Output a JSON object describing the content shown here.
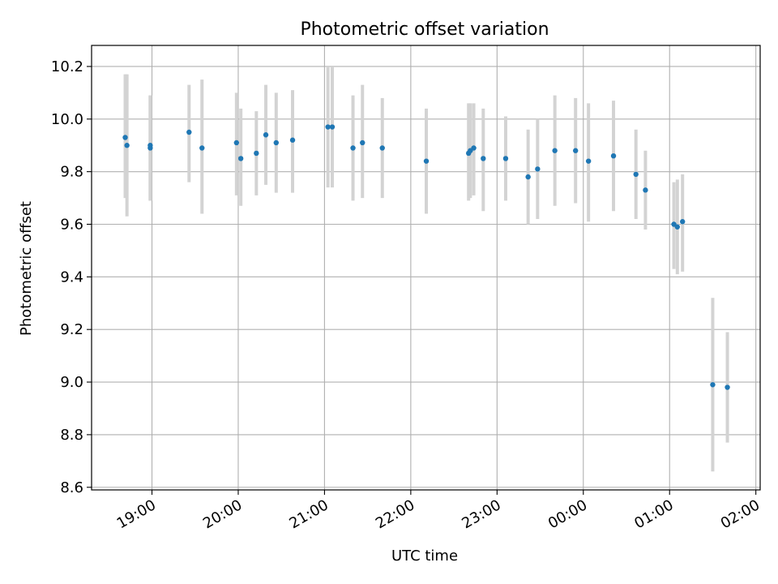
{
  "chart_data": {
    "type": "scatter",
    "title": "Photometric offset variation",
    "xlabel": "UTC time",
    "ylabel": "Photometric offset",
    "xlim_hours": [
      18.3,
      26.05
    ],
    "ylim": [
      8.59,
      10.28
    ],
    "grid": true,
    "colors": {
      "point": "#1f77b4",
      "errorbar": "#d3d3d3",
      "grid": "#b0b0b0",
      "axis": "#000000"
    },
    "x_ticks": [
      {
        "hour": 19,
        "label": "19:00"
      },
      {
        "hour": 20,
        "label": "20:00"
      },
      {
        "hour": 21,
        "label": "21:00"
      },
      {
        "hour": 22,
        "label": "22:00"
      },
      {
        "hour": 23,
        "label": "23:00"
      },
      {
        "hour": 24,
        "label": "00:00"
      },
      {
        "hour": 25,
        "label": "01:00"
      },
      {
        "hour": 26,
        "label": "02:00"
      }
    ],
    "y_ticks": [
      {
        "value": 8.6,
        "label": "8.6"
      },
      {
        "value": 8.8,
        "label": "8.8"
      },
      {
        "value": 9.0,
        "label": "9.0"
      },
      {
        "value": 9.2,
        "label": "9.2"
      },
      {
        "value": 9.4,
        "label": "9.4"
      },
      {
        "value": 9.6,
        "label": "9.6"
      },
      {
        "value": 9.8,
        "label": "9.8"
      },
      {
        "value": 10.0,
        "label": "10.0"
      },
      {
        "value": 10.2,
        "label": "10.2"
      }
    ],
    "points": [
      {
        "t": 18.69,
        "y": 9.93,
        "lo": 9.7,
        "hi": 10.17
      },
      {
        "t": 18.71,
        "y": 9.9,
        "lo": 9.63,
        "hi": 10.17
      },
      {
        "t": 18.98,
        "y": 9.9,
        "lo": 9.69,
        "hi": 10.09
      },
      {
        "t": 18.98,
        "y": 9.89,
        "lo": 9.69,
        "hi": 10.09
      },
      {
        "t": 19.43,
        "y": 9.95,
        "lo": 9.76,
        "hi": 10.13
      },
      {
        "t": 19.58,
        "y": 9.89,
        "lo": 9.64,
        "hi": 10.15
      },
      {
        "t": 19.98,
        "y": 9.91,
        "lo": 9.71,
        "hi": 10.1
      },
      {
        "t": 20.03,
        "y": 9.85,
        "lo": 9.67,
        "hi": 10.04
      },
      {
        "t": 20.21,
        "y": 9.87,
        "lo": 9.71,
        "hi": 10.03
      },
      {
        "t": 20.32,
        "y": 9.94,
        "lo": 9.75,
        "hi": 10.13
      },
      {
        "t": 20.44,
        "y": 9.91,
        "lo": 9.72,
        "hi": 10.1
      },
      {
        "t": 20.63,
        "y": 9.92,
        "lo": 9.72,
        "hi": 10.11
      },
      {
        "t": 21.04,
        "y": 9.97,
        "lo": 9.74,
        "hi": 10.2
      },
      {
        "t": 21.09,
        "y": 9.97,
        "lo": 9.74,
        "hi": 10.2
      },
      {
        "t": 21.33,
        "y": 9.89,
        "lo": 9.69,
        "hi": 10.09
      },
      {
        "t": 21.44,
        "y": 9.91,
        "lo": 9.7,
        "hi": 10.13
      },
      {
        "t": 21.67,
        "y": 9.89,
        "lo": 9.7,
        "hi": 10.08
      },
      {
        "t": 22.18,
        "y": 9.84,
        "lo": 9.64,
        "hi": 10.04
      },
      {
        "t": 22.67,
        "y": 9.87,
        "lo": 9.69,
        "hi": 10.06
      },
      {
        "t": 22.69,
        "y": 9.88,
        "lo": 9.7,
        "hi": 10.06
      },
      {
        "t": 22.73,
        "y": 9.89,
        "lo": 9.71,
        "hi": 10.06
      },
      {
        "t": 22.84,
        "y": 9.85,
        "lo": 9.65,
        "hi": 10.04
      },
      {
        "t": 23.1,
        "y": 9.85,
        "lo": 9.69,
        "hi": 10.01
      },
      {
        "t": 23.36,
        "y": 9.78,
        "lo": 9.6,
        "hi": 9.96
      },
      {
        "t": 23.47,
        "y": 9.81,
        "lo": 9.62,
        "hi": 10.0
      },
      {
        "t": 23.67,
        "y": 9.88,
        "lo": 9.67,
        "hi": 10.09
      },
      {
        "t": 23.91,
        "y": 9.88,
        "lo": 9.68,
        "hi": 10.08
      },
      {
        "t": 24.06,
        "y": 9.84,
        "lo": 9.61,
        "hi": 10.06
      },
      {
        "t": 24.35,
        "y": 9.86,
        "lo": 9.65,
        "hi": 10.07
      },
      {
        "t": 24.61,
        "y": 9.79,
        "lo": 9.62,
        "hi": 9.96
      },
      {
        "t": 24.72,
        "y": 9.73,
        "lo": 9.58,
        "hi": 9.88
      },
      {
        "t": 25.05,
        "y": 9.6,
        "lo": 9.43,
        "hi": 9.76
      },
      {
        "t": 25.09,
        "y": 9.59,
        "lo": 9.41,
        "hi": 9.77
      },
      {
        "t": 25.15,
        "y": 9.61,
        "lo": 9.42,
        "hi": 9.79
      },
      {
        "t": 25.5,
        "y": 8.99,
        "lo": 8.66,
        "hi": 9.32
      },
      {
        "t": 25.67,
        "y": 8.98,
        "lo": 8.77,
        "hi": 9.19
      }
    ]
  }
}
